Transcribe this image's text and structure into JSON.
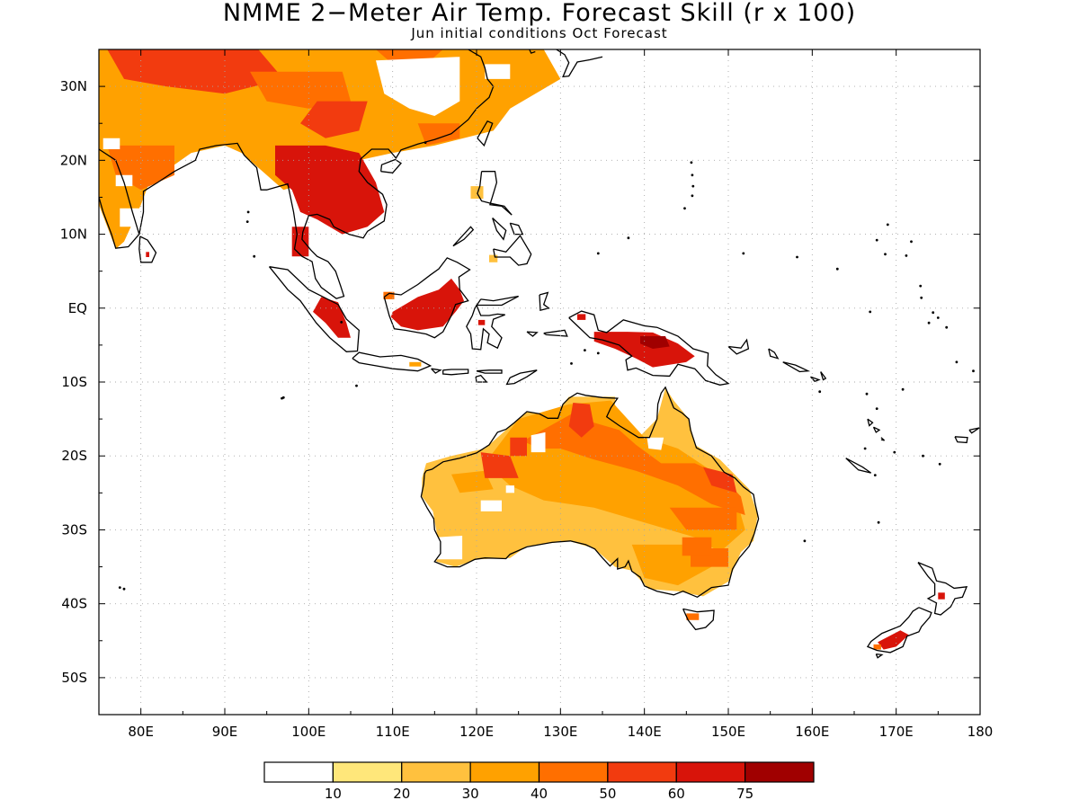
{
  "title": "NMME 2−Meter Air Temp. Forecast Skill (r x 100)",
  "subtitle": "Jun initial conditions  Oct Forecast",
  "map": {
    "lon_range": [
      75,
      180
    ],
    "lat_range": [
      -55,
      35
    ],
    "lon_ticks": [
      {
        "v": 80,
        "label": "80E"
      },
      {
        "v": 90,
        "label": "90E"
      },
      {
        "v": 100,
        "label": "100E"
      },
      {
        "v": 110,
        "label": "110E"
      },
      {
        "v": 120,
        "label": "120E"
      },
      {
        "v": 130,
        "label": "130E"
      },
      {
        "v": 140,
        "label": "140E"
      },
      {
        "v": 150,
        "label": "150E"
      },
      {
        "v": 160,
        "label": "160E"
      },
      {
        "v": 170,
        "label": "170E"
      },
      {
        "v": 180,
        "label": "180"
      }
    ],
    "lat_ticks": [
      {
        "v": 30,
        "label": "30N"
      },
      {
        "v": 20,
        "label": "20N"
      },
      {
        "v": 10,
        "label": "10N"
      },
      {
        "v": 0,
        "label": "EQ"
      },
      {
        "v": -10,
        "label": "10S"
      },
      {
        "v": -20,
        "label": "20S"
      },
      {
        "v": -30,
        "label": "30S"
      },
      {
        "v": -40,
        "label": "40S"
      },
      {
        "v": -50,
        "label": "50S"
      }
    ],
    "grid": true,
    "grid_style": "dotted"
  },
  "colorbar": {
    "thresholds": [
      "10",
      "20",
      "30",
      "40",
      "50",
      "60",
      "75"
    ],
    "colors": [
      "#ffffff",
      "#ffe77a",
      "#ffc13e",
      "#ffa100",
      "#ff6f00",
      "#f23b0f",
      "#d8140a",
      "#a00000"
    ]
  },
  "skill_regions": [
    {
      "name": "South Asia / Tibet / China",
      "level": 4
    },
    {
      "name": "Indochina",
      "level": 6
    },
    {
      "name": "Borneo",
      "level": 6
    },
    {
      "name": "Sumatra",
      "level": 6
    },
    {
      "name": "New Guinea",
      "level": 6
    },
    {
      "name": "Northern Australia",
      "level": 4
    },
    {
      "name": "Central/Western Australia",
      "level": 2
    },
    {
      "name": "Southeast Australia",
      "level": 4
    },
    {
      "name": "New Zealand South Island",
      "level": 6
    }
  ]
}
